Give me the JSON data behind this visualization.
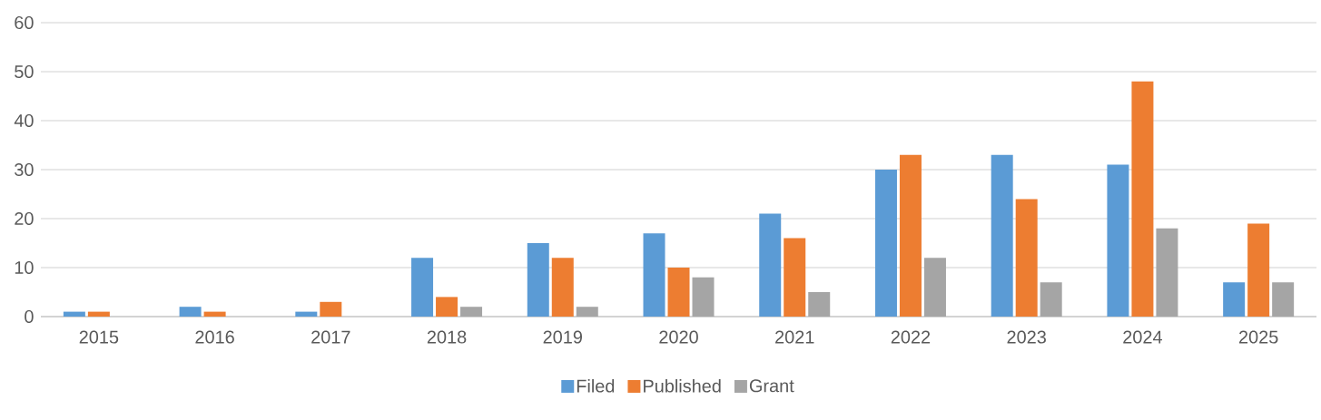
{
  "chart_data": {
    "type": "bar",
    "categories": [
      "2015",
      "2016",
      "2017",
      "2018",
      "2019",
      "2020",
      "2021",
      "2022",
      "2023",
      "2024",
      "2025"
    ],
    "series": [
      {
        "name": "Filed",
        "color": "#5b9bd5",
        "values": [
          1,
          2,
          1,
          12,
          15,
          17,
          21,
          30,
          33,
          31,
          7
        ]
      },
      {
        "name": "Published",
        "color": "#ed7d31",
        "values": [
          1,
          1,
          3,
          4,
          12,
          10,
          16,
          33,
          24,
          48,
          19
        ]
      },
      {
        "name": "Grant",
        "color": "#a5a5a5",
        "values": [
          0,
          0,
          0,
          2,
          2,
          8,
          5,
          12,
          7,
          18,
          7
        ]
      }
    ],
    "ylim": [
      0,
      60
    ],
    "yticks": [
      0,
      10,
      20,
      30,
      40,
      50,
      60
    ],
    "grid": "y",
    "legend": "bottom"
  }
}
